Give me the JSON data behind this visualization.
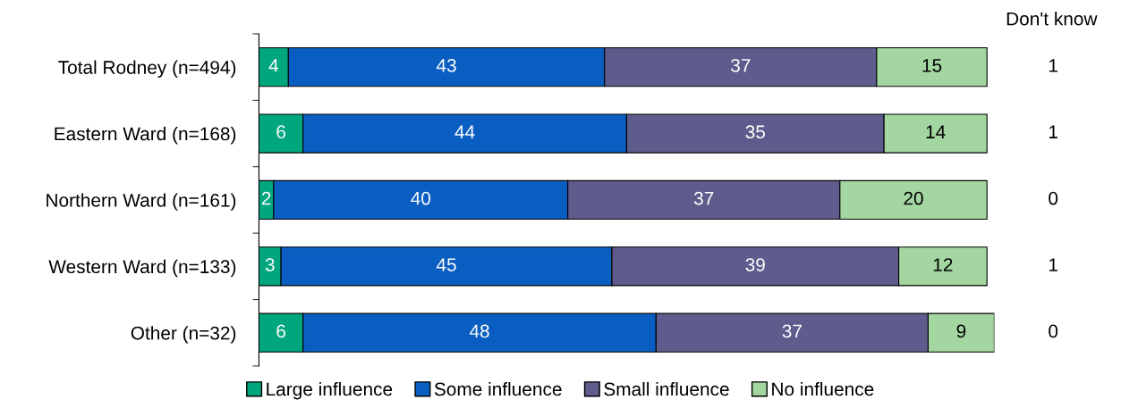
{
  "chart_data": {
    "type": "bar",
    "orientation": "horizontal",
    "stacked": true,
    "categories": [
      "Total Rodney (n=494)",
      "Eastern Ward (n=168)",
      "Northern Ward (n=161)",
      "Western Ward (n=133)",
      "Other (n=32)"
    ],
    "series": [
      {
        "name": "Large influence",
        "color": "#00a67e",
        "values": [
          4,
          6,
          2,
          3,
          6
        ]
      },
      {
        "name": "Some influence",
        "color": "#0a5ec2",
        "values": [
          43,
          44,
          40,
          45,
          48
        ]
      },
      {
        "name": "Small influence",
        "color": "#5e5c8c",
        "values": [
          37,
          35,
          37,
          39,
          37
        ]
      },
      {
        "name": "No influence",
        "color": "#a3d6a0",
        "values": [
          15,
          14,
          20,
          12,
          9
        ]
      }
    ],
    "xlim": [
      0,
      100
    ],
    "tick_labels": "y",
    "grid": false,
    "legend": "bottom",
    "data_labels": true,
    "annotations": [
      "Don't know",
      "1",
      "1",
      "0",
      "1",
      "0"
    ]
  }
}
